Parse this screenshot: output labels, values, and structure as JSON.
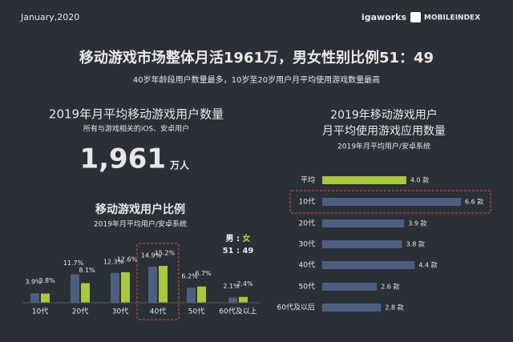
{
  "header": {
    "date": "January,2020",
    "brand": "igaworks",
    "product": "MOBILEINDEX"
  },
  "title": "移动游戏市场整体月活1961万，男女性别比例51：49",
  "subtitle": "40岁年龄段用户数量最多，10岁至20岁用户月平均使用游戏数量最高",
  "stat": {
    "title": "2019年月平均移动游戏用户数量",
    "note": "所有与游戏相关的iOS、安卓用户",
    "value": "1,961",
    "unit": "万人"
  },
  "chart_data": [
    {
      "type": "bar",
      "title": "移动游戏用户比例",
      "subtitle": "2019年月平均用户/安卓系统",
      "categories": [
        "10代",
        "20代",
        "30代",
        "40代",
        "50代",
        "60代及以上"
      ],
      "series": [
        {
          "name": "男",
          "color": "#4c5f80",
          "values": [
            3.9,
            11.7,
            12.3,
            14.9,
            6.2,
            2.1
          ],
          "value_labels": [
            "3.9%",
            "11.7%",
            "12.3%",
            "14.9%",
            "6.2%",
            "2.1%"
          ]
        },
        {
          "name": "女",
          "color": "#a9c83c",
          "values": [
            3.8,
            8.1,
            12.6,
            15.2,
            6.7,
            2.4
          ],
          "value_labels": [
            "3.8%",
            "8.1%",
            "12.6%",
            "15.2%",
            "6.7%",
            "2.4%"
          ]
        }
      ],
      "legend_separator": ":",
      "ratio": "51 : 49",
      "highlight_category": "40代"
    },
    {
      "type": "hbar",
      "title": [
        "2019年移动游戏用户",
        "月平均使用游戏应用数量"
      ],
      "subtitle": "2019年月平均用户/安卓系统",
      "categories": [
        "平均",
        "10代",
        "20代",
        "30代",
        "40代",
        "50代",
        "60代及以后"
      ],
      "values": [
        4.0,
        6.6,
        3.9,
        3.8,
        4.4,
        2.6,
        2.8
      ],
      "value_labels": [
        "4.0 款",
        "6.6 款",
        "3.9 款",
        "3.8 款",
        "4.4 款",
        "2.6 款",
        "2.8 款"
      ],
      "colors": [
        "#a9c83c",
        "#4c5f80",
        "#4c5f80",
        "#4c5f80",
        "#4c5f80",
        "#4c5f80",
        "#4c5f80"
      ],
      "highlight_category": "10代"
    }
  ]
}
